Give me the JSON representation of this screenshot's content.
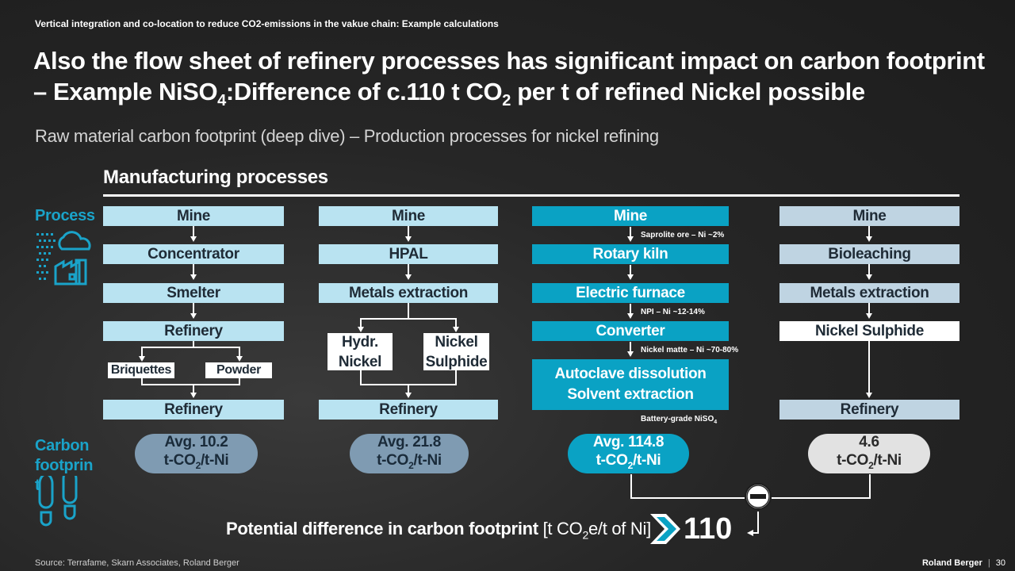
{
  "header": {
    "supertitle": "Vertical integration and co-location to reduce CO2-emissions in the vakue chain: Example calculations",
    "title_line1": "Also the flow sheet of refinery processes has significant impact on carbon footprint",
    "title_line2_a": "– Example NiSO",
    "title_line2_sub": "4",
    "title_line2_b": ":Difference of c.110 t CO",
    "title_line2_sub2": "2",
    "title_line2_c": " per t of refined Nickel possible",
    "subtitle": "Raw material carbon footprint (deep dive) – Production processes for nickel refining"
  },
  "section": {
    "heading": "Manufacturing processes"
  },
  "labels": {
    "process": "Process",
    "carbon": "Carbon footprin t"
  },
  "columns": [
    {
      "steps": [
        "Mine",
        "Concentrator",
        "Smelter",
        "Refinery",
        "Refinery"
      ],
      "split": [
        "Briquettes",
        "Powder"
      ],
      "footprint_value": "Avg. 10.2"
    },
    {
      "steps": [
        "Mine",
        "HPAL",
        "Metals extraction",
        "Refinery"
      ],
      "split": [
        "Hydr. Nickel",
        "Nickel Sulphide"
      ],
      "footprint_value": "Avg. 21.8"
    },
    {
      "steps": [
        "Mine",
        "Rotary kiln",
        "Electric furnace",
        "Converter",
        "Autoclave dissolution",
        "Solvent extraction"
      ],
      "notes": [
        "Saprolite ore – Ni ~2%",
        "NPI – Ni ~12-14%",
        "Nickel matte – Ni ~70-80%",
        "Battery-grade NiSO"
      ],
      "note_sub": "4",
      "footprint_value": "Avg. 114.8"
    },
    {
      "steps": [
        "Mine",
        "Bioleaching",
        "Metals extraction",
        "Nickel Sulphide",
        "Refinery"
      ],
      "footprint_value": "4.6"
    }
  ],
  "unit": {
    "a": "t-CO",
    "sub": "2",
    "b": "/t-Ni"
  },
  "potential": {
    "label": "Potential difference in carbon footprint",
    "unit_a": "[t CO",
    "unit_sub": "2",
    "unit_b": "e/t of Ni]",
    "value": "110"
  },
  "footer": {
    "source": "Source: Terrafame, Skarn Associates, Roland Berger",
    "brand": "Roland Berger",
    "page": "30"
  },
  "colors": {
    "accent": "#0aa2c4",
    "light_blue": "#b9e3f1",
    "grey_blue": "#bfd4e2",
    "pill_blue": "#7f9bb2"
  }
}
